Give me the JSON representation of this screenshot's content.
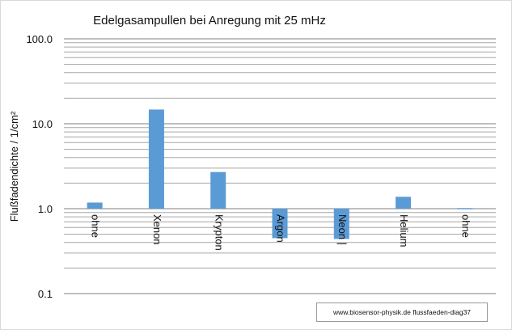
{
  "chart_data": {
    "type": "bar",
    "title": "Edelgasampullen  bei Anregung mit 25 mHz",
    "ylabel": "Flußfadendichte / 1/cm²",
    "xlabel": "",
    "yscale": "log",
    "ylim": [
      0.1,
      100
    ],
    "ytick_labels": [
      "100.0",
      "10.0",
      "1.0",
      "0.1"
    ],
    "yticks": [
      100,
      10,
      1,
      0.1
    ],
    "bar_baseline": 1,
    "categories": [
      "ohne",
      "Xenon",
      "Krypton",
      "Argon",
      "Neon |",
      "Helium",
      "ohne"
    ],
    "values": [
      1.18,
      14.7,
      2.7,
      0.45,
      0.44,
      1.38,
      0.99
    ],
    "bar_color": "#5b9bd5",
    "grid": true,
    "legend": false
  },
  "source_note": "www.biosensor-physik.de  flussfaeden-diag37"
}
